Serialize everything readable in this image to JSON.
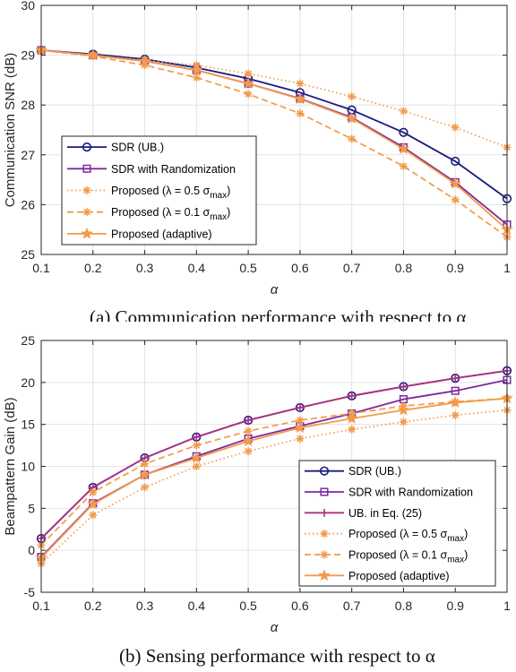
{
  "chart_data": [
    {
      "type": "line",
      "ylabel": "Communication SNR (dB)",
      "xlabel": "α",
      "x": [
        0.1,
        0.2,
        0.3,
        0.4,
        0.5,
        0.6,
        0.7,
        0.8,
        0.9,
        1
      ],
      "xlim": [
        0.1,
        1
      ],
      "ylim": [
        25,
        30
      ],
      "xticks": [
        "0.1",
        "0.2",
        "0.3",
        "0.4",
        "0.5",
        "0.6",
        "0.7",
        "0.8",
        "0.9",
        "1"
      ],
      "yticks": [
        "25",
        "26",
        "27",
        "28",
        "29",
        "30"
      ],
      "grid": true,
      "legend_position": "lower-left",
      "series": [
        {
          "name": "SDR (UB.)",
          "color": "#1a1a7e",
          "dash": "solid",
          "marker": "circle",
          "values": [
            29.1,
            29.02,
            28.92,
            28.75,
            28.53,
            28.25,
            27.9,
            27.45,
            26.87,
            26.12
          ]
        },
        {
          "name": "SDR with Randomization",
          "color": "#7e2a9b",
          "dash": "solid",
          "marker": "square",
          "values": [
            29.1,
            29.0,
            28.88,
            28.7,
            28.43,
            28.13,
            27.75,
            27.15,
            26.45,
            25.6
          ]
        },
        {
          "name": "Proposed (λ = 0.5 σ",
          "sub": "max",
          "tail": ")",
          "color": "#f29a4a",
          "dash": "dot",
          "marker": "asterisk",
          "values": [
            29.1,
            29.0,
            28.9,
            28.8,
            28.63,
            28.43,
            28.17,
            27.88,
            27.55,
            27.15
          ]
        },
        {
          "name": "Proposed (λ = 0.1 σ",
          "sub": "max",
          "tail": ")",
          "color": "#f29a4a",
          "dash": "dash",
          "marker": "asterisk",
          "values": [
            29.1,
            28.98,
            28.8,
            28.55,
            28.22,
            27.83,
            27.32,
            26.77,
            26.1,
            25.35
          ]
        },
        {
          "name": "Proposed (adaptive)",
          "color": "#f29a4a",
          "dash": "solid",
          "marker": "star",
          "values": [
            29.1,
            29.0,
            28.88,
            28.7,
            28.43,
            28.12,
            27.73,
            27.12,
            26.42,
            25.5
          ]
        }
      ]
    },
    {
      "type": "line",
      "ylabel": "Beampattern Gain (dB)",
      "xlabel": "α",
      "x": [
        0.1,
        0.2,
        0.3,
        0.4,
        0.5,
        0.6,
        0.7,
        0.8,
        0.9,
        1
      ],
      "xlim": [
        0.1,
        1
      ],
      "ylim": [
        -5,
        25
      ],
      "xticks": [
        "0.1",
        "0.2",
        "0.3",
        "0.4",
        "0.5",
        "0.6",
        "0.7",
        "0.8",
        "0.9",
        "1"
      ],
      "yticks": [
        "-5",
        "0",
        "5",
        "10",
        "15",
        "20",
        "25"
      ],
      "grid": true,
      "legend_position": "lower-right",
      "series": [
        {
          "name": "SDR (UB.)",
          "color": "#1a1a7e",
          "dash": "solid",
          "marker": "circle",
          "values": [
            1.4,
            7.5,
            11.0,
            13.5,
            15.5,
            17.0,
            18.4,
            19.5,
            20.5,
            21.4
          ]
        },
        {
          "name": "SDR with Randomization",
          "color": "#7e2a9b",
          "dash": "solid",
          "marker": "square",
          "values": [
            -0.8,
            5.6,
            9.0,
            11.2,
            13.3,
            14.8,
            16.3,
            18.0,
            19.0,
            20.3
          ]
        },
        {
          "name": "UB. in Eq. (25)",
          "color": "#b03080",
          "dash": "solid",
          "marker": "plus",
          "values": [
            1.4,
            7.5,
            11.0,
            13.5,
            15.5,
            17.0,
            18.4,
            19.5,
            20.5,
            21.4
          ]
        },
        {
          "name": "Proposed (λ = 0.5 σ",
          "sub": "max",
          "tail": ")",
          "color": "#f29a4a",
          "dash": "dot",
          "marker": "asterisk",
          "values": [
            -1.6,
            4.2,
            7.5,
            10.0,
            11.8,
            13.3,
            14.4,
            15.3,
            16.1,
            16.7
          ]
        },
        {
          "name": "Proposed (λ = 0.1 σ",
          "sub": "max",
          "tail": ")",
          "color": "#f29a4a",
          "dash": "dash",
          "marker": "asterisk",
          "values": [
            0.6,
            6.9,
            10.3,
            12.5,
            14.2,
            15.5,
            16.3,
            17.2,
            17.7,
            18.1
          ]
        },
        {
          "name": "Proposed (adaptive)",
          "color": "#f29a4a",
          "dash": "solid",
          "marker": "star",
          "values": [
            -0.9,
            5.5,
            9.0,
            11.0,
            13.0,
            14.6,
            15.7,
            16.7,
            17.6,
            18.1
          ]
        }
      ]
    }
  ],
  "captions": {
    "a": "(a) Communication performance with respect to α",
    "b": "(b) Sensing performance with respect to α"
  }
}
